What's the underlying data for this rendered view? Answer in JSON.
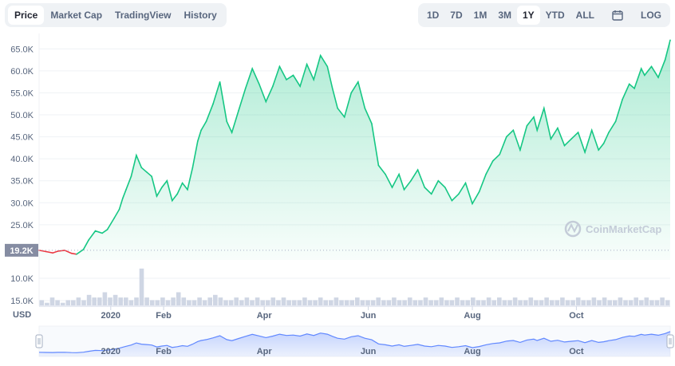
{
  "tabs": [
    "Price",
    "Market Cap",
    "TradingView",
    "History"
  ],
  "active_tab": "Price",
  "ranges": [
    "1D",
    "7D",
    "1M",
    "3M",
    "1Y",
    "YTD",
    "ALL"
  ],
  "active_range": "1Y",
  "calendar_icon": "calendar-icon",
  "log_label": "LOG",
  "watermark": "CoinMarketCap",
  "watermark_icon": "coinmarketcap-logo-icon",
  "currency_label": "USD",
  "current_marker": "19.2K",
  "colors": {
    "up": "#16c784",
    "down": "#ea3943",
    "navigator": "#6188ff",
    "volume": "#cfd6e4"
  },
  "chart_data": {
    "type": "area",
    "y_axis": {
      "ticks": [
        "25.0K",
        "30.0K",
        "35.0K",
        "40.0K",
        "45.0K",
        "50.0K",
        "55.0K",
        "60.0K",
        "65.0K"
      ],
      "range": [
        17000,
        68500
      ]
    },
    "x_axis": {
      "ticks": [
        "2020",
        "Feb",
        "Apr",
        "Jun",
        "Aug",
        "Oct"
      ],
      "range": [
        "2020-11-20",
        "2021-11-25"
      ]
    },
    "volume_axis": {
      "ticks": [
        "10.0K",
        "15.0K"
      ]
    },
    "series": [
      {
        "x": [
          "2020-11-20",
          "2020-11-24",
          "2020-11-28",
          "2020-12-01",
          "2020-12-05",
          "2020-12-09",
          "2020-12-12",
          "2020-12-16",
          "2020-12-19",
          "2020-12-23",
          "2020-12-27",
          "2020-12-30",
          "2021-01-03",
          "2021-01-06",
          "2021-01-08",
          "2021-01-10",
          "2021-01-13",
          "2021-01-16",
          "2021-01-19",
          "2021-01-22",
          "2021-01-25",
          "2021-01-28",
          "2021-01-31",
          "2021-02-03",
          "2021-02-06",
          "2021-02-09",
          "2021-02-12",
          "2021-02-15",
          "2021-02-18",
          "2021-02-21",
          "2021-02-23",
          "2021-02-26",
          "2021-03-02",
          "2021-03-06",
          "2021-03-10",
          "2021-03-13",
          "2021-03-17",
          "2021-03-21",
          "2021-03-25",
          "2021-03-29",
          "2021-04-02",
          "2021-04-06",
          "2021-04-10",
          "2021-04-14",
          "2021-04-18",
          "2021-04-22",
          "2021-04-26",
          "2021-04-30",
          "2021-05-04",
          "2021-05-08",
          "2021-05-11",
          "2021-05-14",
          "2021-05-18",
          "2021-05-22",
          "2021-05-26",
          "2021-05-30",
          "2021-06-03",
          "2021-06-07",
          "2021-06-11",
          "2021-06-15",
          "2021-06-19",
          "2021-06-22",
          "2021-06-26",
          "2021-06-30",
          "2021-07-04",
          "2021-07-08",
          "2021-07-12",
          "2021-07-16",
          "2021-07-20",
          "2021-07-24",
          "2021-07-28",
          "2021-08-01",
          "2021-08-05",
          "2021-08-09",
          "2021-08-13",
          "2021-08-17",
          "2021-08-21",
          "2021-08-25",
          "2021-08-29",
          "2021-09-02",
          "2021-09-06",
          "2021-09-08",
          "2021-09-12",
          "2021-09-16",
          "2021-09-20",
          "2021-09-24",
          "2021-09-28",
          "2021-10-02",
          "2021-10-06",
          "2021-10-10",
          "2021-10-14",
          "2021-10-17",
          "2021-10-20",
          "2021-10-24",
          "2021-10-28",
          "2021-11-01",
          "2021-11-04",
          "2021-11-08",
          "2021-11-10",
          "2021-11-14",
          "2021-11-18",
          "2021-11-22",
          "2021-11-25"
        ],
        "y": [
          19200,
          18900,
          18600,
          19000,
          19200,
          18500,
          18300,
          19400,
          21500,
          23600,
          23100,
          23900,
          26500,
          28500,
          31000,
          33000,
          36000,
          40800,
          38000,
          37000,
          36000,
          31500,
          33500,
          35000,
          30500,
          32000,
          34500,
          33000,
          38000,
          44000,
          46500,
          48500,
          52500,
          57500,
          48500,
          46000,
          51000,
          56000,
          60500,
          57000,
          53000,
          56500,
          61000,
          58000,
          59000,
          56500,
          61500,
          58000,
          63500,
          61000,
          56000,
          51500,
          49500,
          55000,
          57500,
          51500,
          48000,
          38500,
          36500,
          33500,
          36500,
          33000,
          35000,
          37500,
          33500,
          32000,
          35000,
          33500,
          30500,
          32000,
          34500,
          29800,
          32500,
          36500,
          39500,
          41000,
          45000,
          46500,
          42000,
          47500,
          49500,
          46500,
          51500,
          44500,
          47000,
          43000,
          44500,
          46000,
          41500,
          46500,
          42000,
          43500,
          46000,
          48500,
          53500,
          57000,
          56000,
          60500,
          59000,
          61000,
          58500,
          62500,
          67000
        ]
      }
    ],
    "volume": [
      2,
      1,
      3,
      2,
      1,
      2,
      2,
      3,
      2,
      4,
      3,
      3,
      5,
      3,
      4,
      3,
      3,
      2,
      3,
      14,
      3,
      2,
      2,
      3,
      2,
      3,
      5,
      3,
      2,
      2,
      3,
      2,
      3,
      4,
      3,
      2,
      2,
      3,
      2,
      3,
      2,
      3,
      2,
      2,
      3,
      2,
      3,
      2,
      2,
      2,
      3,
      2,
      2,
      3,
      2,
      2,
      3,
      2,
      2,
      2,
      3,
      2,
      2,
      2,
      3,
      2,
      2,
      3,
      2,
      2,
      3,
      2,
      2,
      3,
      2,
      2,
      3,
      2,
      2,
      3,
      2,
      2,
      3,
      2,
      2,
      3,
      2,
      3,
      2,
      2,
      3,
      2,
      2,
      3,
      2,
      2,
      3,
      2,
      2,
      3,
      2,
      2,
      3,
      2,
      2,
      3,
      2,
      3,
      2,
      2,
      3,
      2,
      2,
      3,
      2,
      3,
      2,
      2,
      3,
      2
    ]
  }
}
